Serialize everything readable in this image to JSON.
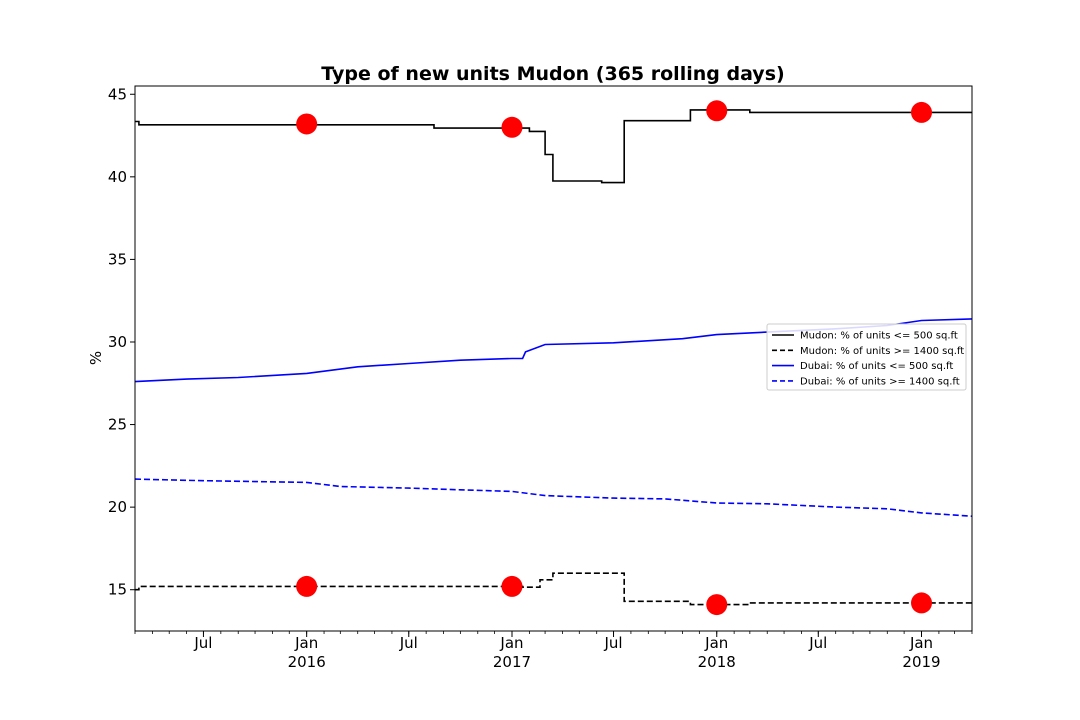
{
  "chart_data": {
    "type": "line",
    "title": "Type of new units Mudon (365 rolling days)",
    "xlabel": "",
    "ylabel": "%",
    "xlim": [
      "2015-03-01",
      "2019-04-01"
    ],
    "ylim": [
      12.5,
      45.5
    ],
    "y_ticks": [
      15,
      20,
      25,
      30,
      35,
      40,
      45
    ],
    "x_ticks": [
      {
        "date": "2015-07-01",
        "label": "Jul",
        "sublabel": ""
      },
      {
        "date": "2016-01-01",
        "label": "Jan",
        "sublabel": "2016"
      },
      {
        "date": "2016-07-01",
        "label": "Jul",
        "sublabel": ""
      },
      {
        "date": "2017-01-01",
        "label": "Jan",
        "sublabel": "2017"
      },
      {
        "date": "2017-07-01",
        "label": "Jul",
        "sublabel": ""
      },
      {
        "date": "2018-01-01",
        "label": "Jan",
        "sublabel": "2018"
      },
      {
        "date": "2018-07-01",
        "label": "Jul",
        "sublabel": ""
      },
      {
        "date": "2019-01-01",
        "label": "Jan",
        "sublabel": "2019"
      }
    ],
    "legend_position": "center-right",
    "grid": false,
    "series": [
      {
        "name": "Mudon: % of units <= 500 sq.ft",
        "color": "#000000",
        "dash": "solid",
        "step": true,
        "points": [
          [
            "2015-03-01",
            43.35
          ],
          [
            "2015-03-08",
            43.15
          ],
          [
            "2015-12-20",
            43.15
          ],
          [
            "2016-08-15",
            42.95
          ],
          [
            "2017-01-01",
            42.95
          ],
          [
            "2017-01-15",
            42.95
          ],
          [
            "2017-02-01",
            42.75
          ],
          [
            "2017-03-01",
            41.35
          ],
          [
            "2017-03-15",
            39.75
          ],
          [
            "2017-06-10",
            39.65
          ],
          [
            "2017-07-20",
            43.4
          ],
          [
            "2017-11-15",
            44.05
          ],
          [
            "2018-03-01",
            43.9
          ],
          [
            "2019-04-01",
            43.9
          ]
        ]
      },
      {
        "name": "Mudon: % of units >= 1400 sq.ft",
        "color": "#000000",
        "dash": "dashed",
        "step": true,
        "points": [
          [
            "2015-03-01",
            15.0
          ],
          [
            "2015-03-08",
            15.2
          ],
          [
            "2017-01-01",
            15.2
          ],
          [
            "2017-01-20",
            15.15
          ],
          [
            "2017-02-20",
            15.6
          ],
          [
            "2017-03-15",
            16.0
          ],
          [
            "2017-07-20",
            14.3
          ],
          [
            "2017-11-15",
            14.1
          ],
          [
            "2018-03-01",
            14.2
          ],
          [
            "2019-04-01",
            14.2
          ]
        ]
      },
      {
        "name": "Dubai: % of units <= 500 sq.ft",
        "color": "#0000ff",
        "dash": "solid",
        "step": false,
        "points": [
          [
            "2015-03-01",
            27.6
          ],
          [
            "2015-06-01",
            27.75
          ],
          [
            "2015-09-01",
            27.85
          ],
          [
            "2016-01-01",
            28.1
          ],
          [
            "2016-04-01",
            28.5
          ],
          [
            "2016-07-01",
            28.7
          ],
          [
            "2016-10-01",
            28.9
          ],
          [
            "2017-01-01",
            29.0
          ],
          [
            "2017-01-20",
            29.0
          ],
          [
            "2017-01-25",
            29.4
          ],
          [
            "2017-03-01",
            29.85
          ],
          [
            "2017-07-01",
            29.95
          ],
          [
            "2017-11-01",
            30.2
          ],
          [
            "2018-01-01",
            30.45
          ],
          [
            "2018-04-01",
            30.6
          ],
          [
            "2018-08-01",
            30.8
          ],
          [
            "2018-11-01",
            31.0
          ],
          [
            "2019-01-01",
            31.3
          ],
          [
            "2019-04-01",
            31.4
          ]
        ]
      },
      {
        "name": "Dubai: % of units >= 1400 sq.ft",
        "color": "#0000ff",
        "dash": "dashed",
        "step": false,
        "points": [
          [
            "2015-03-01",
            21.7
          ],
          [
            "2015-07-01",
            21.6
          ],
          [
            "2016-01-01",
            21.5
          ],
          [
            "2016-03-01",
            21.25
          ],
          [
            "2016-07-01",
            21.15
          ],
          [
            "2016-10-01",
            21.05
          ],
          [
            "2017-01-01",
            20.95
          ],
          [
            "2017-03-01",
            20.7
          ],
          [
            "2017-07-01",
            20.55
          ],
          [
            "2017-10-01",
            20.5
          ],
          [
            "2018-01-01",
            20.25
          ],
          [
            "2018-04-01",
            20.2
          ],
          [
            "2018-08-01",
            20.0
          ],
          [
            "2018-11-01",
            19.9
          ],
          [
            "2019-01-01",
            19.65
          ],
          [
            "2019-04-01",
            19.45
          ]
        ]
      }
    ],
    "markers": {
      "color": "#ff0000",
      "points": [
        [
          "2016-01-01",
          43.2
        ],
        [
          "2017-01-01",
          43.0
        ],
        [
          "2018-01-01",
          44.0
        ],
        [
          "2019-01-01",
          43.9
        ],
        [
          "2016-01-01",
          15.2
        ],
        [
          "2017-01-01",
          15.2
        ],
        [
          "2018-01-01",
          14.1
        ],
        [
          "2019-01-01",
          14.2
        ]
      ]
    }
  }
}
